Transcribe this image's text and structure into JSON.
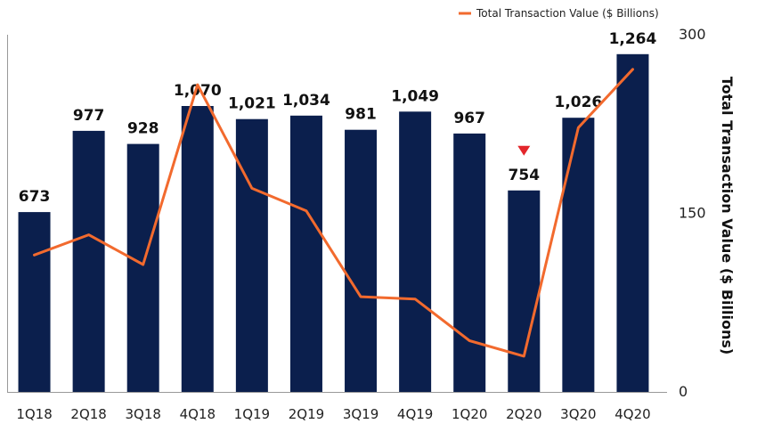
{
  "chart_data": {
    "type": "bar",
    "categories": [
      "1Q18",
      "2Q18",
      "3Q18",
      "4Q18",
      "1Q19",
      "2Q19",
      "3Q19",
      "4Q19",
      "1Q20",
      "2Q20",
      "3Q20",
      "4Q20"
    ],
    "series": [
      {
        "type": "bar",
        "axis": "left",
        "values": [
          673,
          977,
          928,
          1070,
          1021,
          1034,
          981,
          1049,
          967,
          754,
          1026,
          1264
        ],
        "data_labels": [
          "673",
          "977",
          "928",
          "1,070",
          "1,021",
          "1,034",
          "981",
          "1,049",
          "967",
          "754",
          "1,026",
          "1,264"
        ],
        "color": "#0b1f4d"
      },
      {
        "name": "Total Transaction Value ($ Billions)",
        "type": "line",
        "axis": "right",
        "values": [
          115,
          132,
          107,
          258,
          171,
          152,
          80,
          78,
          43,
          30,
          222,
          271
        ],
        "color": "#f26a2e"
      }
    ],
    "y_left": {
      "range": [
        0,
        1400
      ],
      "visible": false
    },
    "y_right": {
      "label": "Total Transaction Value ($ Billions)",
      "range": [
        0,
        300
      ],
      "ticks": [
        "0",
        "150",
        "300"
      ]
    },
    "annotation": {
      "category": "2Q20",
      "shape": "down-triangle",
      "color": "#e3262b"
    },
    "legend": {
      "position": "top-right",
      "entries": [
        "Total Transaction Value ($ Billions)"
      ]
    },
    "grid": false
  }
}
